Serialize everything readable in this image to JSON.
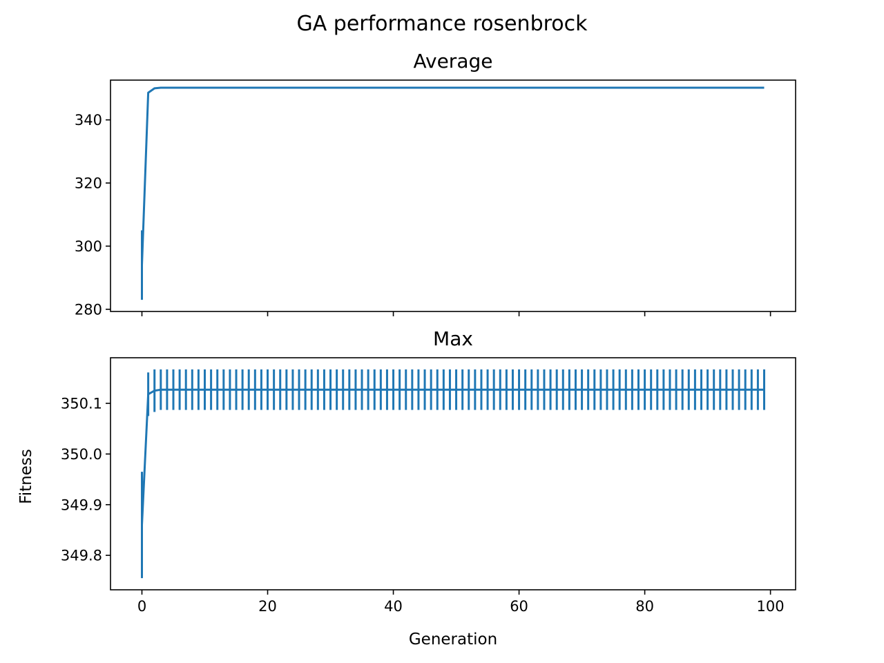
{
  "figure": {
    "title": "GA performance rosenbrock",
    "line_color": "#1f77b4"
  },
  "chart_data": [
    {
      "type": "line",
      "title": "Average",
      "xlabel": "",
      "ylabel": "",
      "xlim": [
        -5,
        104
      ],
      "ylim": [
        279.3,
        352.6
      ],
      "xticks": [
        0,
        20,
        40,
        60,
        80,
        100
      ],
      "xtick_labels_visible": false,
      "yticks": [
        280,
        300,
        320,
        340
      ],
      "ytick_labels": [
        "280",
        "300",
        "320",
        "340"
      ],
      "grid": false,
      "legend": "none",
      "series": [
        {
          "x_start": 0,
          "x_step": 1,
          "values": [
            294,
            348.6,
            350.0,
            350.2,
            350.2
          ],
          "values_note_hold": 350.2,
          "x_end": 99,
          "error": [
            {
              "x": 0,
              "low": 283.0,
              "high": 305.0
            }
          ]
        }
      ]
    },
    {
      "type": "line",
      "title": "Max",
      "xlabel": "Generation",
      "ylabel": "Fitness",
      "xlim": [
        -5,
        104
      ],
      "ylim": [
        349.732,
        350.19
      ],
      "xticks": [
        0,
        20,
        40,
        60,
        80,
        100
      ],
      "xtick_labels": [
        "0",
        "20",
        "40",
        "60",
        "80",
        "100"
      ],
      "yticks": [
        349.8,
        349.9,
        350.0,
        350.1
      ],
      "ytick_labels": [
        "349.8",
        "349.9",
        "350.0",
        "350.1"
      ],
      "grid": false,
      "legend": "none",
      "series": [
        {
          "x_start": 0,
          "x_step": 1,
          "values": [
            349.86,
            350.118,
            350.125,
            350.127,
            350.127
          ],
          "x_end": 99,
          "errors": [
            {
              "x": 0,
              "low": 349.755,
              "high": 349.965
            },
            {
              "x": 1,
              "low": 350.075,
              "high": 350.161
            },
            {
              "x": 2,
              "low": 350.083,
              "high": 350.167
            }
          ],
          "steady_error": {
            "from_x": 3,
            "low": 350.087,
            "high": 350.167
          }
        }
      ]
    }
  ]
}
